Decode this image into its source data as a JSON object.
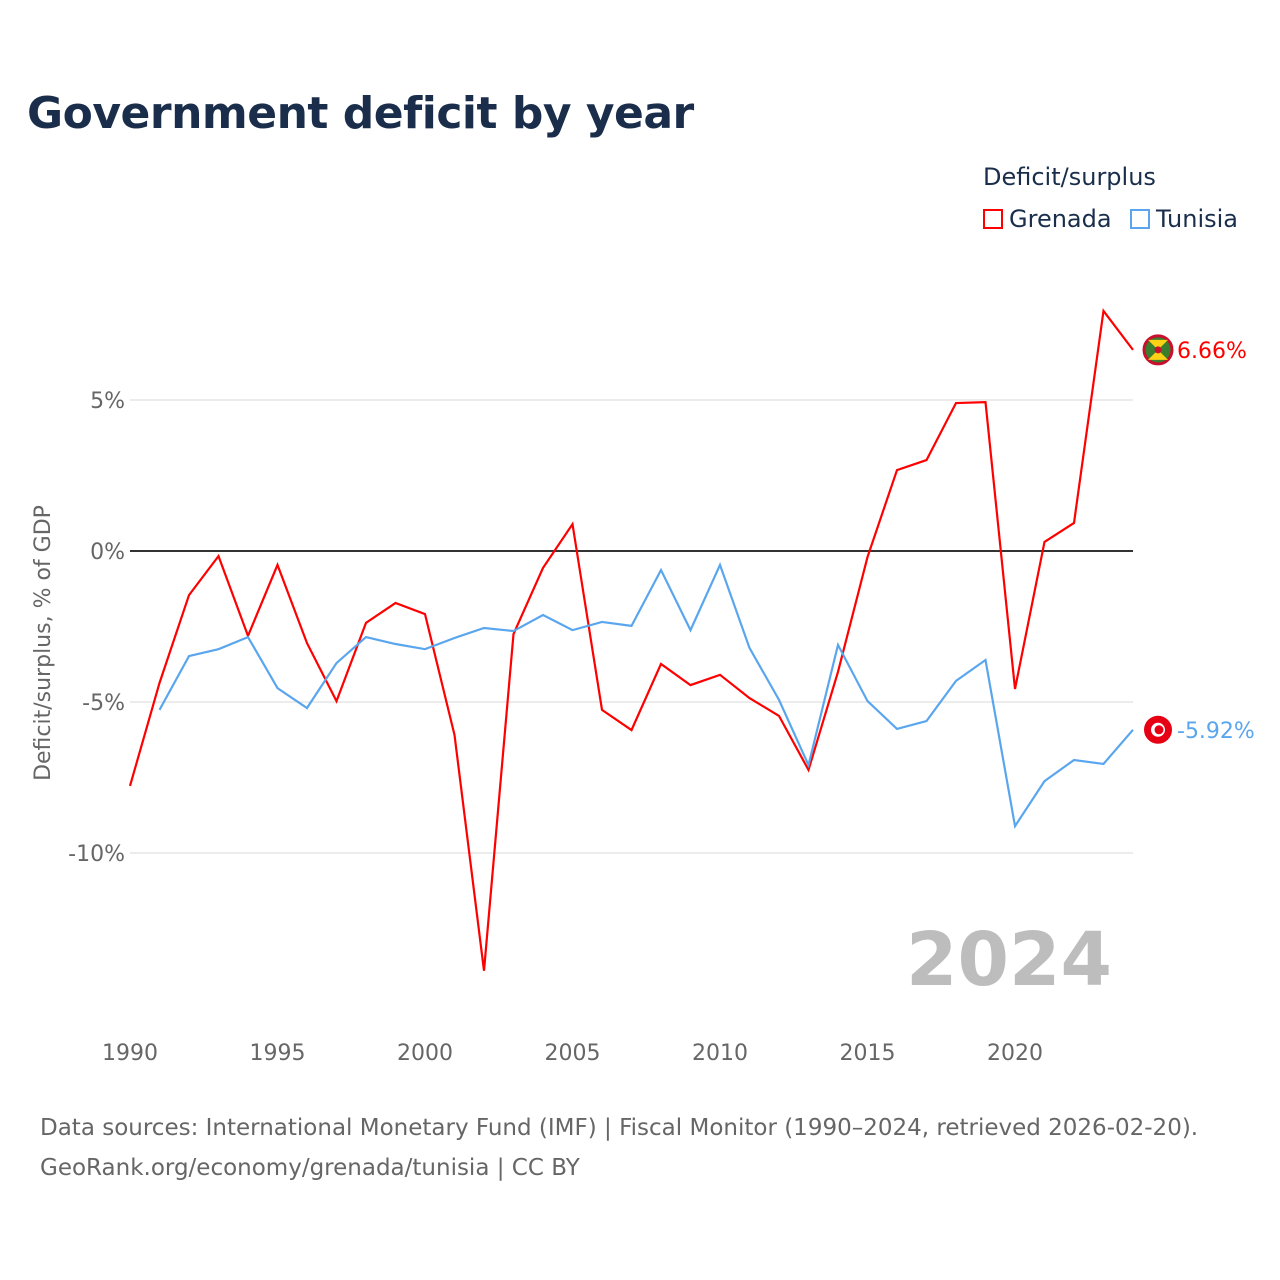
{
  "title": "Government deficit by year",
  "legend": {
    "title": "Deficit/surplus",
    "items": [
      {
        "label": "Grenada",
        "color": "#ff0000"
      },
      {
        "label": "Tunisia",
        "color": "#5aa6ee"
      }
    ]
  },
  "watermark_year": "2024",
  "source_line1": "Data sources: International Monetary Fund (IMF) | Fiscal Monitor (1990–2024, retrieved 2026-02-20).",
  "source_line2": "GeoRank.org/economy/grenada/tunisia | CC BY",
  "chart_data": {
    "type": "line",
    "title": "Government deficit by year",
    "xlabel": "",
    "ylabel": "Deficit/surplus, % of GDP",
    "xlim": [
      1990,
      2024
    ],
    "ylim": [
      -15,
      9
    ],
    "x_ticks": [
      1990,
      1995,
      2000,
      2005,
      2010,
      2015,
      2020
    ],
    "x_tick_labels": [
      "1990",
      "1995",
      "2000",
      "2005",
      "2010",
      "2015",
      "2020"
    ],
    "y_ticks": [
      5,
      0,
      -5,
      -10
    ],
    "y_tick_labels": [
      "5%",
      "0%",
      "-5%",
      "-10%"
    ],
    "grid": true,
    "legend_position": "top-right",
    "series": [
      {
        "name": "Grenada",
        "color": "#ff0000",
        "end_label": "6.66%",
        "x_start": 1990,
        "values": [
          -7.78,
          -4.37,
          -1.46,
          -0.17,
          -2.81,
          -0.46,
          -3.05,
          -4.97,
          -2.38,
          -1.72,
          -2.09,
          -6.09,
          -13.9,
          -2.75,
          -0.56,
          0.89,
          -5.26,
          -5.93,
          -3.74,
          -4.44,
          -4.1,
          -4.87,
          -5.46,
          -7.25,
          -4.0,
          -0.2,
          2.68,
          3.01,
          4.9,
          4.93,
          -4.57,
          0.3,
          0.93,
          7.95,
          6.66
        ]
      },
      {
        "name": "Tunisia",
        "color": "#5aa6ee",
        "end_label": "-5.92%",
        "x_start": 1991,
        "values": [
          -5.26,
          -3.48,
          -3.25,
          -2.85,
          -4.54,
          -5.2,
          -3.71,
          -2.85,
          -3.08,
          -3.25,
          -2.88,
          -2.55,
          -2.65,
          -2.12,
          -2.62,
          -2.35,
          -2.48,
          -0.63,
          -2.62,
          -0.46,
          -3.21,
          -4.93,
          -7.09,
          -3.11,
          -4.97,
          -5.89,
          -5.63,
          -4.3,
          -3.61,
          -9.11,
          -7.62,
          -6.92,
          -7.05,
          -5.92
        ]
      }
    ]
  }
}
